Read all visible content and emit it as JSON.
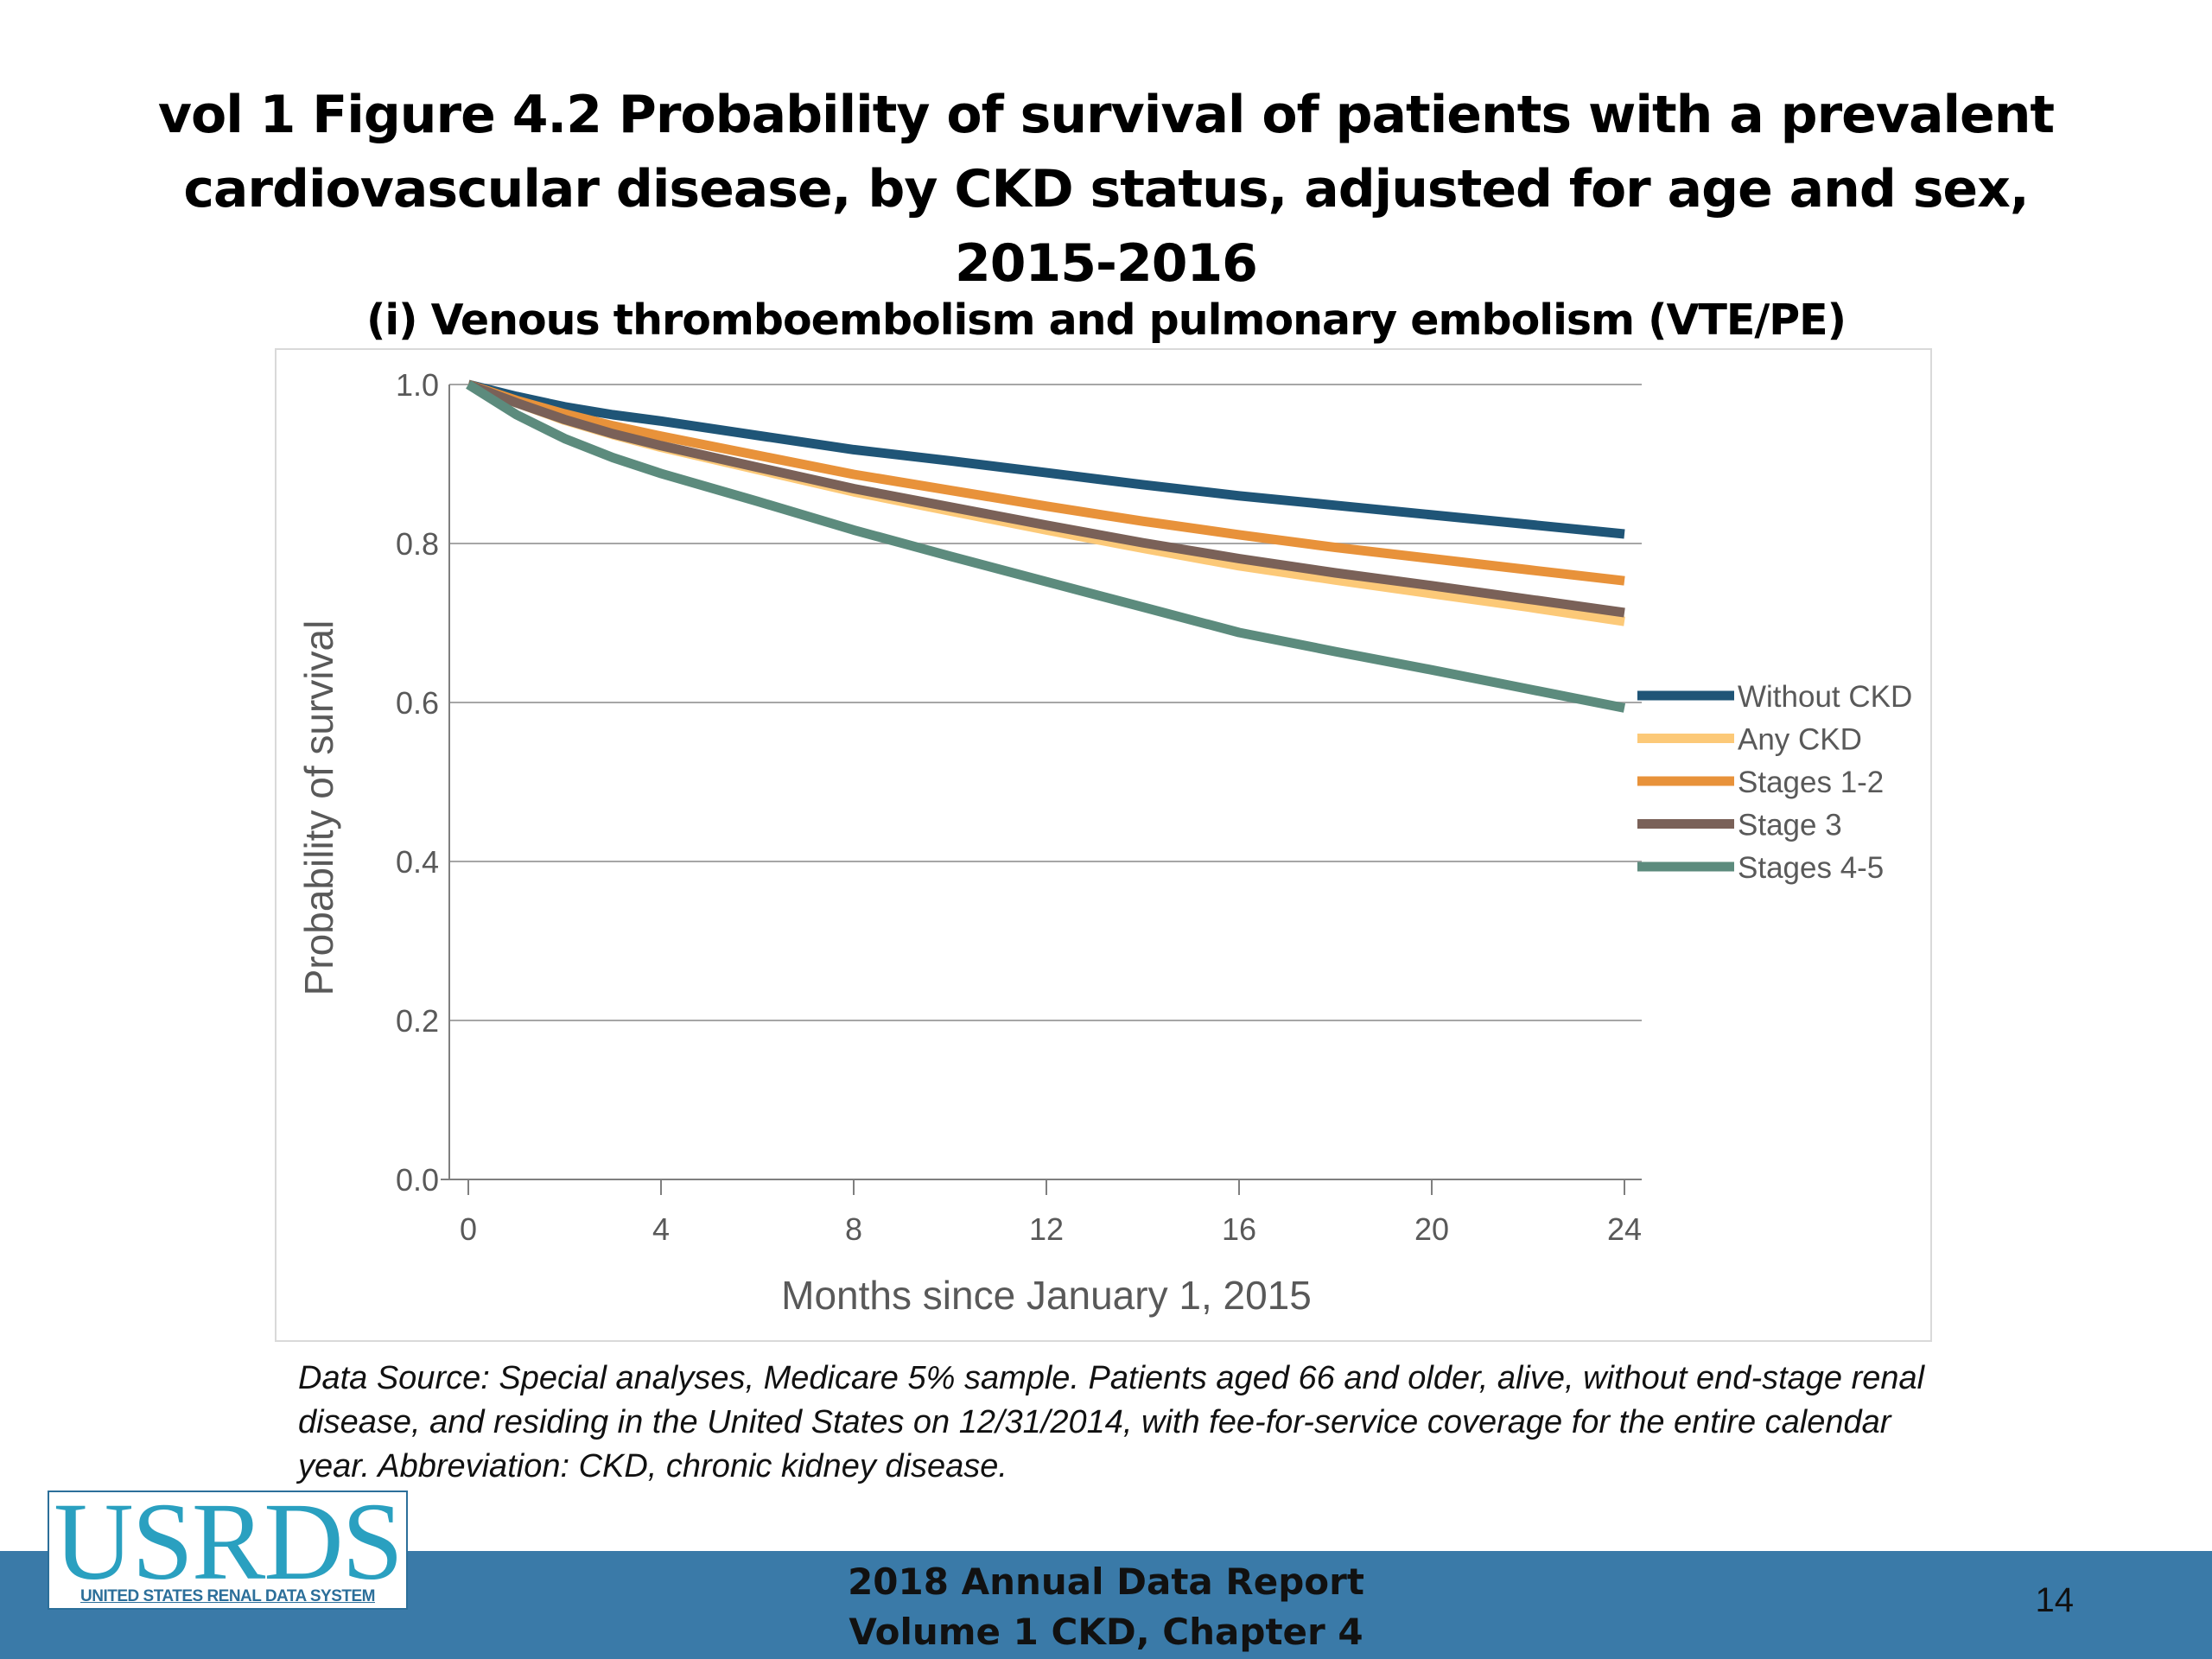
{
  "slide": {
    "title_line1": "vol 1 Figure 4.2 Probability of survival of patients with a prevalent",
    "title_line2": "cardiovascular disease, by CKD status, adjusted for age and sex, 2015-2016",
    "footnote": "Data Source: Special analyses, Medicare 5% sample. Patients aged 66 and older, alive, without end-stage renal disease, and residing in the United States on 12/31/2014, with fee-for-service coverage for the entire calendar year. Abbreviation: CKD, chronic kidney disease.",
    "report_line1": "2018 Annual Data Report",
    "report_line2": "Volume 1 CKD, Chapter 4",
    "page_number": "14",
    "logo_text": "USRDS",
    "logo_subtext": "UNITED STATES RENAL DATA SYSTEM"
  },
  "chart_data": {
    "type": "line",
    "title": "(i) Venous thromboembolism and pulmonary embolism (VTE/PE)",
    "xlabel": "Months since January 1, 2015",
    "ylabel": "Probability of survival",
    "xlim": [
      0,
      24
    ],
    "ylim": [
      0,
      1.0
    ],
    "xticks": [
      0,
      4,
      8,
      12,
      16,
      20,
      24
    ],
    "xtick_labels": [
      "0",
      "4",
      "8",
      "12",
      "16",
      "20",
      "24"
    ],
    "yticks": [
      0,
      0.2,
      0.4,
      0.6,
      0.8,
      1.0
    ],
    "ytick_labels": [
      "0.0",
      "0.2",
      "0.4",
      "0.6",
      "0.8",
      "1.0"
    ],
    "grid": "horizontal",
    "legend_position": "right",
    "x": [
      0,
      1,
      2,
      3,
      4,
      6,
      8,
      10,
      12,
      14,
      16,
      18,
      20,
      22,
      24
    ],
    "series": [
      {
        "name": "Without CKD",
        "color": "#1f5577",
        "values": [
          1.0,
          0.985,
          0.972,
          0.962,
          0.954,
          0.936,
          0.918,
          0.904,
          0.889,
          0.874,
          0.86,
          0.848,
          0.836,
          0.824,
          0.812
        ]
      },
      {
        "name": "Any CKD",
        "color": "#fcc978",
        "values": [
          1.0,
          0.977,
          0.955,
          0.937,
          0.921,
          0.893,
          0.865,
          0.841,
          0.817,
          0.794,
          0.772,
          0.754,
          0.737,
          0.72,
          0.702
        ]
      },
      {
        "name": "Stages 1-2",
        "color": "#e8923a",
        "values": [
          1.0,
          0.98,
          0.963,
          0.948,
          0.935,
          0.911,
          0.887,
          0.867,
          0.847,
          0.828,
          0.811,
          0.795,
          0.781,
          0.767,
          0.753
        ]
      },
      {
        "name": "Stage 3",
        "color": "#7a6158",
        "values": [
          1.0,
          0.977,
          0.956,
          0.938,
          0.923,
          0.896,
          0.869,
          0.846,
          0.823,
          0.801,
          0.781,
          0.763,
          0.747,
          0.73,
          0.713
        ]
      },
      {
        "name": "Stages 4-5",
        "color": "#5c8b7d",
        "values": [
          1.0,
          0.962,
          0.932,
          0.908,
          0.888,
          0.853,
          0.817,
          0.784,
          0.752,
          0.72,
          0.688,
          0.664,
          0.641,
          0.617,
          0.593
        ]
      }
    ]
  }
}
